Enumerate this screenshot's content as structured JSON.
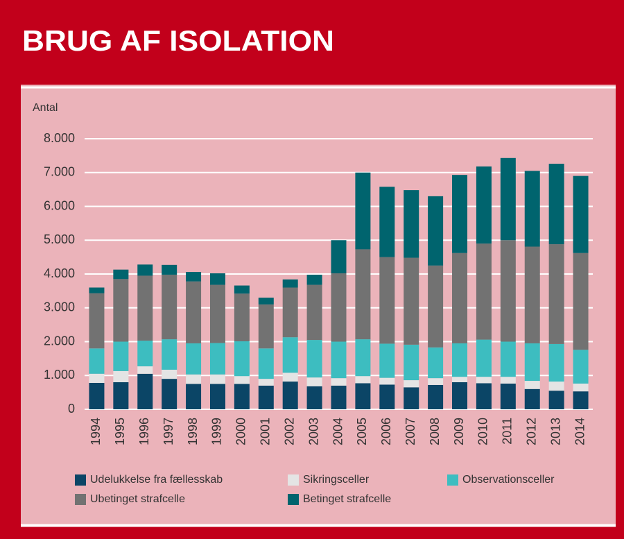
{
  "chart_data": {
    "type": "stacked_bar",
    "title": "BRUG AF ISOLATION",
    "y_label": "Antal",
    "categories": [
      "1994",
      "1995",
      "1996",
      "1997",
      "1998",
      "1999",
      "2000",
      "2001",
      "2002",
      "2003",
      "2004",
      "2005",
      "2006",
      "2007",
      "2008",
      "2009",
      "2010",
      "2011",
      "2012",
      "2013",
      "2014"
    ],
    "series": [
      {
        "name": "Udelukkelse fra fællesskab",
        "color": "#0b4566",
        "values": [
          780,
          800,
          1050,
          900,
          750,
          750,
          750,
          700,
          820,
          680,
          700,
          770,
          730,
          650,
          720,
          800,
          770,
          760,
          600,
          550,
          530
        ]
      },
      {
        "name": "Sikringsceller",
        "color": "#e4e4e4",
        "values": [
          270,
          330,
          220,
          270,
          280,
          280,
          230,
          200,
          260,
          260,
          220,
          210,
          200,
          210,
          200,
          160,
          190,
          200,
          240,
          270,
          230
        ]
      },
      {
        "name": "Observationsceller",
        "color": "#3dbdc0",
        "values": [
          750,
          870,
          760,
          900,
          920,
          930,
          1030,
          900,
          1050,
          1110,
          1080,
          1090,
          1010,
          1050,
          910,
          990,
          1100,
          1040,
          1110,
          1110,
          1000
        ]
      },
      {
        "name": "Ubetinget strafcelle",
        "color": "#727272",
        "values": [
          1630,
          1850,
          1920,
          1910,
          1830,
          1720,
          1410,
          1300,
          1470,
          1630,
          2020,
          2660,
          2560,
          2570,
          2420,
          2670,
          2840,
          3000,
          2860,
          2950,
          2860
        ]
      },
      {
        "name": "Betinget strafcelle",
        "color": "#00646e",
        "values": [
          170,
          280,
          330,
          290,
          280,
          340,
          240,
          200,
          240,
          300,
          980,
          2270,
          2080,
          2000,
          2050,
          2310,
          2280,
          2430,
          2240,
          2380,
          2280
        ]
      }
    ],
    "ylim": [
      0,
      8000
    ],
    "yticks": [
      0,
      {
        "value": 1000,
        "label": "1.000"
      },
      {
        "value": 2000,
        "label": "2.000"
      },
      {
        "value": 3000,
        "label": "3.000"
      },
      {
        "value": 4000,
        "label": "4.000"
      },
      {
        "value": 5000,
        "label": "5.000"
      },
      {
        "value": 6000,
        "label": "6.000"
      },
      {
        "value": 7000,
        "label": "7.000"
      },
      {
        "value": 8000,
        "label": "8.000"
      }
    ],
    "grid": true
  }
}
